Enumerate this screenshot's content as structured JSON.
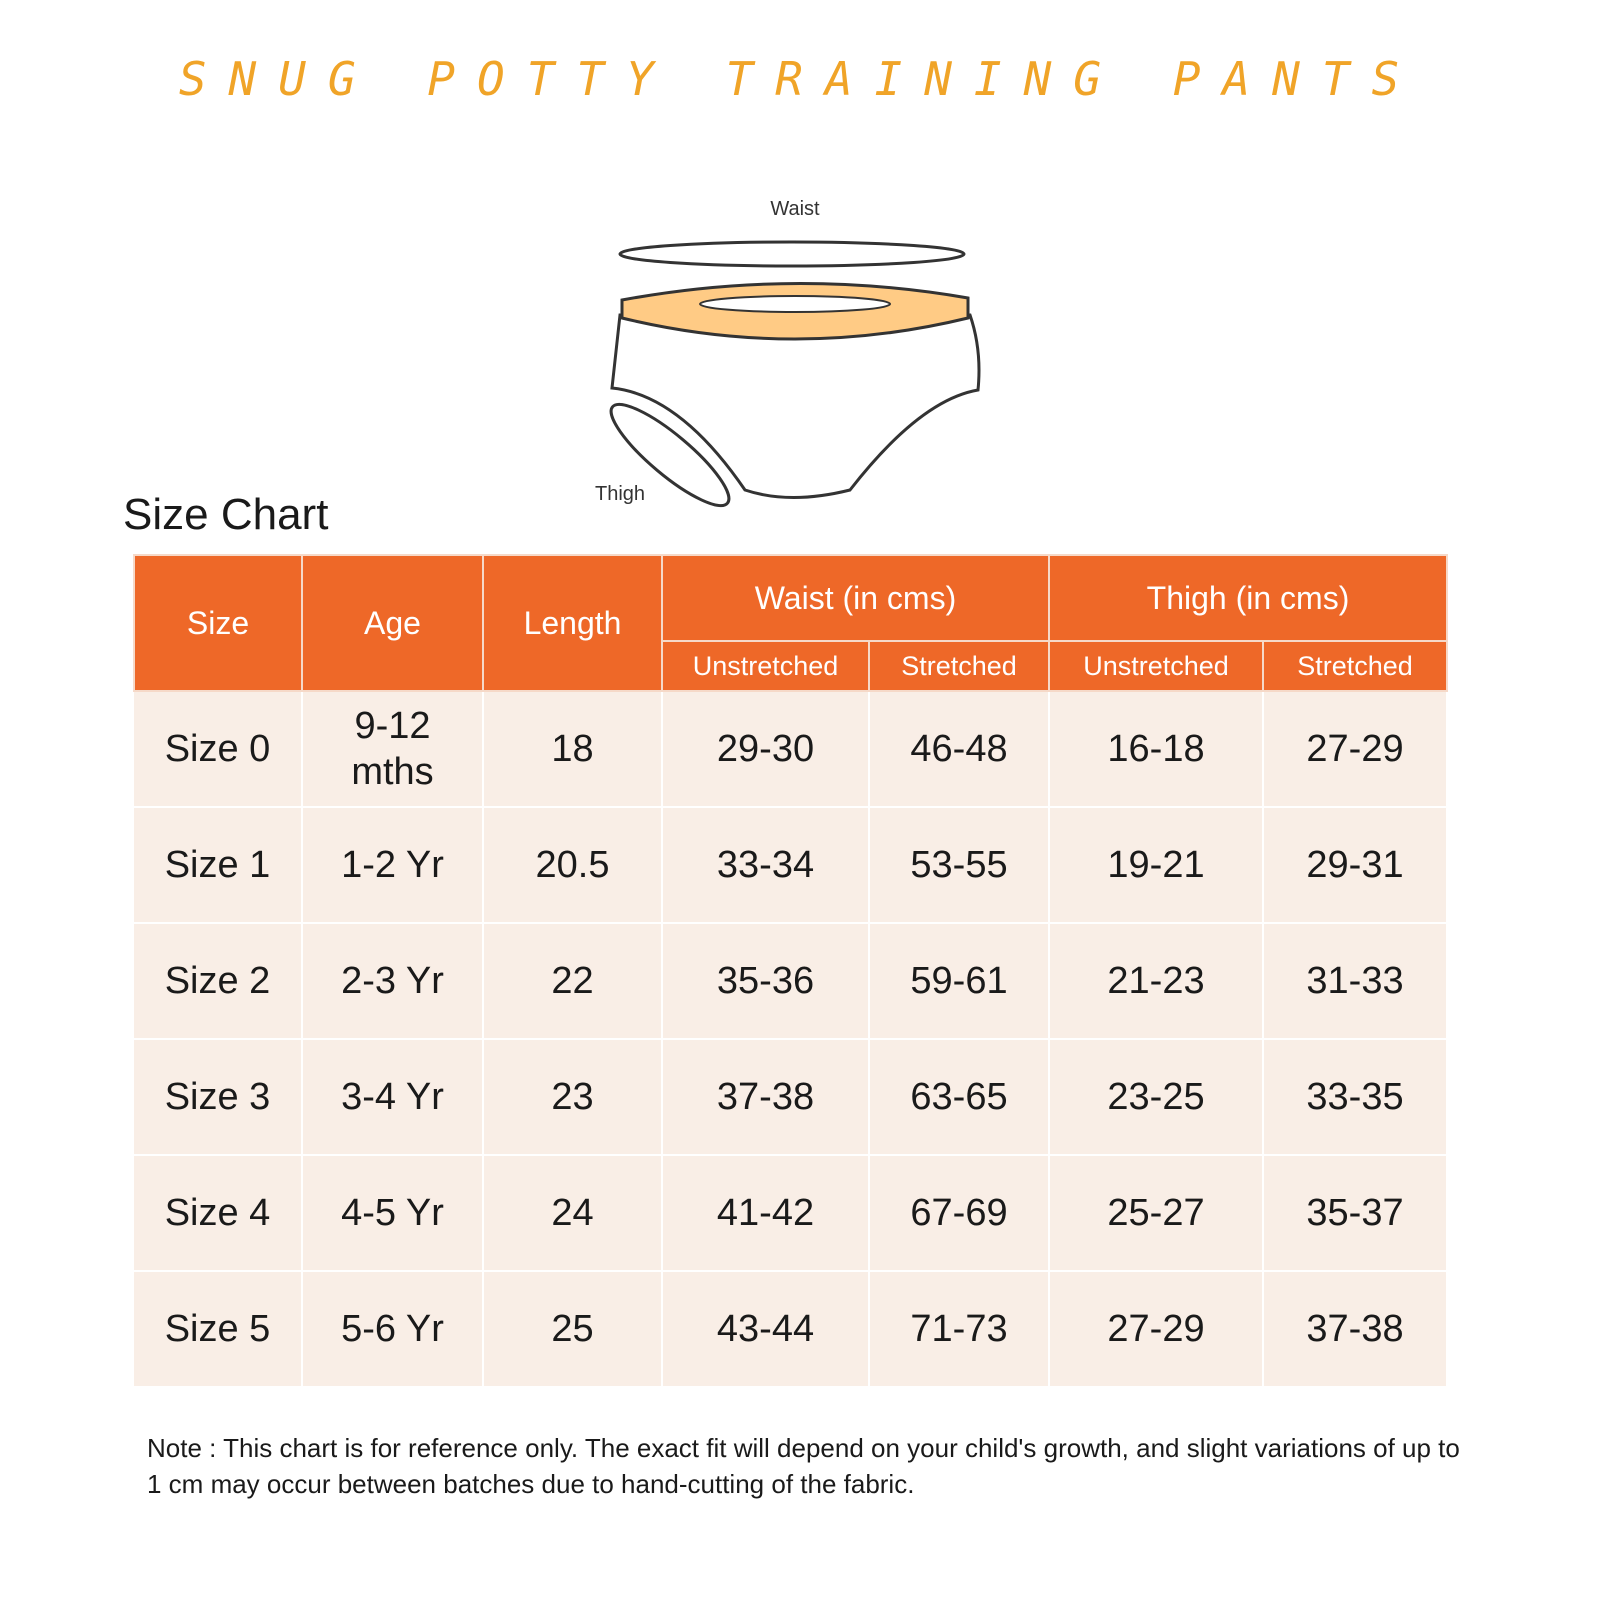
{
  "title": "SNUG POTTY TRAINING PANTS",
  "illustration": {
    "waist_label": "Waist",
    "thigh_label": "Thigh",
    "band_color": "#FFCB85"
  },
  "heading": "Size Chart",
  "colors": {
    "header": "#EE6828",
    "row": "#F9EEE6",
    "title": "#F0A428"
  },
  "table": {
    "headers": {
      "size": "Size",
      "age": "Age",
      "length": "Length",
      "waist": "Waist  (in cms)",
      "thigh": "Thigh  (in cms)"
    },
    "subheaders": [
      "Unstretched",
      "Stretched",
      "Unstretched",
      "Stretched"
    ],
    "rows": [
      [
        "Size 0",
        "9-12 mths",
        "18",
        "29-30",
        "46-48",
        "16-18",
        "27-29"
      ],
      [
        "Size 1",
        "1-2 Yr",
        "20.5",
        "33-34",
        "53-55",
        "19-21",
        "29-31"
      ],
      [
        "Size 2",
        "2-3 Yr",
        "22",
        "35-36",
        "59-61",
        "21-23",
        "31-33"
      ],
      [
        "Size 3",
        "3-4 Yr",
        "23",
        "37-38",
        "63-65",
        "23-25",
        "33-35"
      ],
      [
        "Size 4",
        "4-5 Yr",
        "24",
        "41-42",
        "67-69",
        "25-27",
        "35-37"
      ],
      [
        "Size 5",
        "5-6 Yr",
        "25",
        "43-44",
        "71-73",
        "27-29",
        "37-38"
      ]
    ]
  },
  "note": "Note : This chart is for reference only. The exact fit will depend on your child's growth, and slight variations of up to 1 cm may occur between batches due to hand-cutting of the fabric."
}
